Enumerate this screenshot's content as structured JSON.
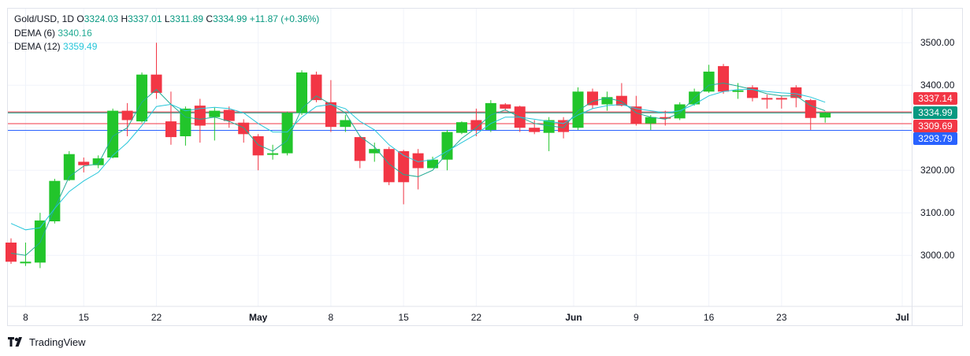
{
  "header": {
    "symbol": "Gold/USD, 1D",
    "open_label": "O",
    "open": "3324.03",
    "high_label": "H",
    "high": "3337.01",
    "low_label": "L",
    "low": "3311.89",
    "close_label": "C",
    "close": "3334.99",
    "change": "+11.87 (+0.36%)"
  },
  "indicators": [
    {
      "name": "DEMA (6)",
      "value": "3340.16",
      "color": "#22ab94"
    },
    {
      "name": "DEMA (12)",
      "value": "3359.49",
      "color": "#26c6da"
    }
  ],
  "price_tags": {
    "high": "3337.14",
    "close": "3334.99",
    "low": "3309.69",
    "dema": "3293.79"
  },
  "brand": "TradingView",
  "colors": {
    "up": "#22c52b",
    "down": "#f23645",
    "grid": "#f0f3fa",
    "axis_text": "#131722"
  },
  "chart_data": {
    "type": "candlestick",
    "title": "Gold/USD, 1D",
    "ylim": [
      2880,
      3580
    ],
    "y_ticks": [
      "3000.00",
      "3100.00",
      "3200.00",
      "3300.00",
      "3400.00",
      "3500.00"
    ],
    "x_tick_labels": [
      "8",
      "15",
      "22",
      "May",
      "8",
      "15",
      "22",
      "Jun",
      "9",
      "16",
      "23",
      "Jul"
    ],
    "grid": true,
    "horizontal_lines": [
      {
        "price": 3337.14,
        "color": "#f23645"
      },
      {
        "price": 3334.99,
        "color": "#089981"
      },
      {
        "price": 3309.69,
        "color": "#f23645"
      },
      {
        "price": 3293.79,
        "color": "#2962ff"
      }
    ],
    "candles": [
      {
        "date": "Apr 7",
        "o": 3030,
        "h": 3040,
        "l": 2980,
        "c": 2985
      },
      {
        "date": "Apr 8",
        "o": 2985,
        "h": 3030,
        "l": 2975,
        "c": 2985
      },
      {
        "date": "Apr 9",
        "o": 2983,
        "h": 3100,
        "l": 2970,
        "c": 3082
      },
      {
        "date": "Apr 10",
        "o": 3080,
        "h": 3180,
        "l": 3075,
        "c": 3175
      },
      {
        "date": "Apr 11",
        "o": 3177,
        "h": 3245,
        "l": 3175,
        "c": 3238
      },
      {
        "date": "Apr 14",
        "o": 3220,
        "h": 3230,
        "l": 3195,
        "c": 3212
      },
      {
        "date": "Apr 15",
        "o": 3212,
        "h": 3235,
        "l": 3205,
        "c": 3228
      },
      {
        "date": "Apr 16",
        "o": 3230,
        "h": 3345,
        "l": 3228,
        "c": 3340
      },
      {
        "date": "Apr 17",
        "o": 3340,
        "h": 3358,
        "l": 3280,
        "c": 3318
      },
      {
        "date": "Apr 21",
        "o": 3315,
        "h": 3430,
        "l": 3312,
        "c": 3425
      },
      {
        "date": "Apr 22",
        "o": 3425,
        "h": 3500,
        "l": 3368,
        "c": 3382
      },
      {
        "date": "Apr 23",
        "o": 3315,
        "h": 3385,
        "l": 3260,
        "c": 3278
      },
      {
        "date": "Apr 24",
        "o": 3280,
        "h": 3350,
        "l": 3258,
        "c": 3345
      },
      {
        "date": "Apr 25",
        "o": 3352,
        "h": 3368,
        "l": 3265,
        "c": 3305
      },
      {
        "date": "Apr 28",
        "o": 3325,
        "h": 3347,
        "l": 3270,
        "c": 3340
      },
      {
        "date": "Apr 29",
        "o": 3342,
        "h": 3350,
        "l": 3300,
        "c": 3316
      },
      {
        "date": "Apr 30",
        "o": 3312,
        "h": 3320,
        "l": 3265,
        "c": 3285
      },
      {
        "date": "May 1",
        "o": 3280,
        "h": 3285,
        "l": 3200,
        "c": 3235
      },
      {
        "date": "May 2",
        "o": 3240,
        "h": 3260,
        "l": 3225,
        "c": 3240
      },
      {
        "date": "May 5",
        "o": 3240,
        "h": 3338,
        "l": 3235,
        "c": 3335
      },
      {
        "date": "May 6",
        "o": 3335,
        "h": 3435,
        "l": 3330,
        "c": 3430
      },
      {
        "date": "May 7",
        "o": 3425,
        "h": 3432,
        "l": 3360,
        "c": 3365
      },
      {
        "date": "May 8",
        "o": 3360,
        "h": 3412,
        "l": 3290,
        "c": 3302
      },
      {
        "date": "May 9",
        "o": 3302,
        "h": 3330,
        "l": 3290,
        "c": 3318
      },
      {
        "date": "May 12",
        "o": 3278,
        "h": 3282,
        "l": 3205,
        "c": 3222
      },
      {
        "date": "May 13",
        "o": 3240,
        "h": 3265,
        "l": 3220,
        "c": 3250
      },
      {
        "date": "May 14",
        "o": 3250,
        "h": 3255,
        "l": 3165,
        "c": 3172
      },
      {
        "date": "May 15",
        "o": 3245,
        "h": 3248,
        "l": 3120,
        "c": 3172
      },
      {
        "date": "May 16",
        "o": 3240,
        "h": 3250,
        "l": 3155,
        "c": 3205
      },
      {
        "date": "May 19",
        "o": 3205,
        "h": 3232,
        "l": 3205,
        "c": 3225
      },
      {
        "date": "May 20",
        "o": 3225,
        "h": 3295,
        "l": 3200,
        "c": 3290
      },
      {
        "date": "May 21",
        "o": 3288,
        "h": 3315,
        "l": 3285,
        "c": 3313
      },
      {
        "date": "May 22",
        "o": 3318,
        "h": 3345,
        "l": 3280,
        "c": 3295
      },
      {
        "date": "May 23",
        "o": 3295,
        "h": 3365,
        "l": 3290,
        "c": 3358
      },
      {
        "date": "May 26",
        "o": 3355,
        "h": 3358,
        "l": 3340,
        "c": 3345
      },
      {
        "date": "May 27",
        "o": 3350,
        "h": 3352,
        "l": 3290,
        "c": 3300
      },
      {
        "date": "May 28",
        "o": 3300,
        "h": 3318,
        "l": 3285,
        "c": 3290
      },
      {
        "date": "May 29",
        "o": 3288,
        "h": 3325,
        "l": 3245,
        "c": 3318
      },
      {
        "date": "May 30",
        "o": 3318,
        "h": 3325,
        "l": 3275,
        "c": 3290
      },
      {
        "date": "Jun 2",
        "o": 3300,
        "h": 3395,
        "l": 3295,
        "c": 3385
      },
      {
        "date": "Jun 3",
        "o": 3385,
        "h": 3392,
        "l": 3345,
        "c": 3353
      },
      {
        "date": "Jun 4",
        "o": 3355,
        "h": 3385,
        "l": 3340,
        "c": 3372
      },
      {
        "date": "Jun 5",
        "o": 3375,
        "h": 3405,
        "l": 3350,
        "c": 3352
      },
      {
        "date": "Jun 6",
        "o": 3350,
        "h": 3375,
        "l": 3305,
        "c": 3310
      },
      {
        "date": "Jun 9",
        "o": 3310,
        "h": 3330,
        "l": 3295,
        "c": 3325
      },
      {
        "date": "Jun 10",
        "o": 3325,
        "h": 3340,
        "l": 3305,
        "c": 3322
      },
      {
        "date": "Jun 11",
        "o": 3322,
        "h": 3360,
        "l": 3318,
        "c": 3355
      },
      {
        "date": "Jun 12",
        "o": 3355,
        "h": 3392,
        "l": 3352,
        "c": 3385
      },
      {
        "date": "Jun 13",
        "o": 3385,
        "h": 3448,
        "l": 3382,
        "c": 3432
      },
      {
        "date": "Jun 16",
        "o": 3445,
        "h": 3450,
        "l": 3380,
        "c": 3385
      },
      {
        "date": "Jun 17",
        "o": 3385,
        "h": 3405,
        "l": 3368,
        "c": 3388
      },
      {
        "date": "Jun 18",
        "o": 3395,
        "h": 3400,
        "l": 3362,
        "c": 3370
      },
      {
        "date": "Jun 19",
        "o": 3370,
        "h": 3378,
        "l": 3345,
        "c": 3368
      },
      {
        "date": "Jun 20",
        "o": 3370,
        "h": 3375,
        "l": 3345,
        "c": 3368
      },
      {
        "date": "Jun 23",
        "o": 3395,
        "h": 3400,
        "l": 3348,
        "c": 3370
      },
      {
        "date": "Jun 24",
        "o": 3365,
        "h": 3368,
        "l": 3295,
        "c": 3323
      },
      {
        "date": "Jun 25",
        "o": 3324,
        "h": 3337,
        "l": 3312,
        "c": 3335
      }
    ],
    "series": [
      {
        "name": "DEMA (6)",
        "values": [
          3005,
          3000,
          3030,
          3110,
          3185,
          3210,
          3215,
          3280,
          3300,
          3360,
          3390,
          3355,
          3325,
          3320,
          3325,
          3315,
          3300,
          3260,
          3245,
          3270,
          3345,
          3375,
          3355,
          3335,
          3280,
          3255,
          3215,
          3190,
          3185,
          3200,
          3240,
          3275,
          3300,
          3330,
          3342,
          3325,
          3310,
          3305,
          3300,
          3340,
          3362,
          3370,
          3362,
          3335,
          3325,
          3320,
          3335,
          3370,
          3400,
          3405,
          3398,
          3390,
          3380,
          3375,
          3375,
          3352,
          3340
        ]
      },
      {
        "name": "DEMA (12)",
        "values": [
          3075,
          3060,
          3065,
          3110,
          3150,
          3175,
          3195,
          3235,
          3265,
          3305,
          3350,
          3355,
          3340,
          3345,
          3348,
          3345,
          3335,
          3310,
          3290,
          3290,
          3325,
          3350,
          3355,
          3345,
          3315,
          3295,
          3260,
          3235,
          3220,
          3225,
          3245,
          3265,
          3285,
          3310,
          3325,
          3325,
          3320,
          3315,
          3310,
          3330,
          3345,
          3352,
          3355,
          3345,
          3340,
          3335,
          3340,
          3355,
          3375,
          3385,
          3390,
          3390,
          3385,
          3382,
          3380,
          3372,
          3360
        ]
      }
    ]
  }
}
